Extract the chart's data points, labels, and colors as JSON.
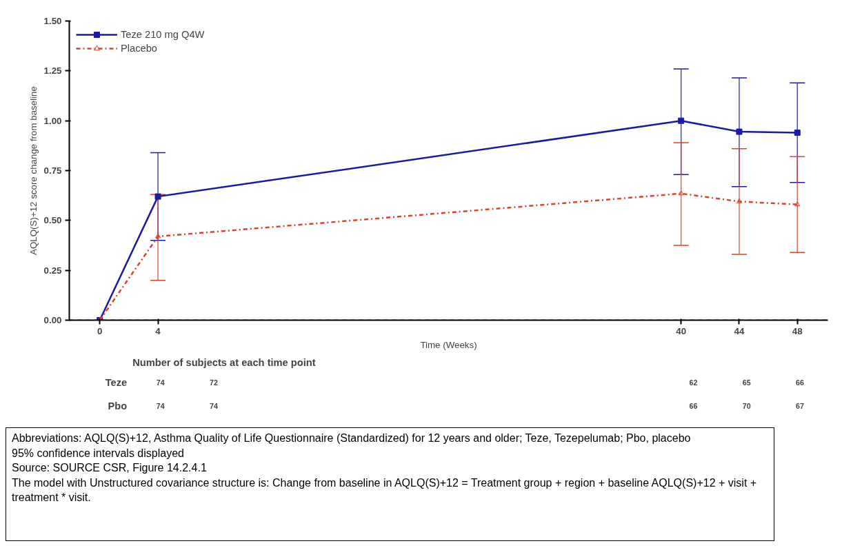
{
  "chart_data": {
    "type": "line",
    "x": [
      0,
      4,
      40,
      44,
      48
    ],
    "xlabel": "Time (Weeks)",
    "ylabel": "AQLQ(S)+12 score change from baseline",
    "xlim": [
      -2.1,
      50.1
    ],
    "xticks": [
      0,
      4,
      40,
      44,
      48
    ],
    "ylim": [
      0,
      1.5
    ],
    "yticks": [
      {
        "value": 0,
        "label": "0.00"
      },
      {
        "value": 0.25,
        "label": "0.25"
      },
      {
        "value": 0.5,
        "label": "0.50"
      },
      {
        "value": 0.75,
        "label": "0.75"
      },
      {
        "value": 1.0,
        "label": "1.00"
      },
      {
        "value": 1.25,
        "label": "1.25"
      },
      {
        "value": 1.5,
        "label": "1.50"
      }
    ],
    "grid": false,
    "legend": "top left",
    "series": [
      {
        "name": "Teze 210 mg Q4W",
        "color": "#1a1aa6",
        "marker": "square",
        "line_style": "solid",
        "values": [
          0,
          0.62,
          1.0,
          0.945,
          0.94
        ],
        "errors": [
          null,
          [
            0.4,
            0.84
          ],
          [
            0.73,
            1.26
          ],
          [
            0.67,
            1.215
          ],
          [
            0.69,
            1.19
          ]
        ]
      },
      {
        "name": "Placebo",
        "color": "#e0402a",
        "marker": "triangle",
        "line_style": "dashdot",
        "values": [
          0,
          0.42,
          0.635,
          0.595,
          0.58
        ],
        "errors": [
          null,
          [
            0.2,
            0.63
          ],
          [
            0.375,
            0.89
          ],
          [
            0.33,
            0.86
          ],
          [
            0.34,
            0.82
          ]
        ]
      }
    ],
    "ref_lines": [
      {
        "axis": "y",
        "value": 0,
        "color": "#000000",
        "line_style": "dashed"
      }
    ],
    "annotations": [
      "Number of subjects at each time point",
      "Teze",
      "74",
      "72",
      "62",
      "65",
      "66",
      "Pbo",
      "74",
      "74",
      "66",
      "70",
      "67",
      "Abbreviations: AQLQ(S)+12, Asthma Quality of Life Questionnaire (Standardized) for 12 years and older; Teze, Tezepelumab; Pbo, placebo",
      "95% confidence intervals displayed",
      "Source: SOURCE CSR, Figure 14.2.4.1",
      "The model with Unstructured covariance structure is: Change from baseline in AQLQ(S)+12 = Treatment group + region + baseline AQLQ(S)+12 + visit + treatment * visit."
    ]
  }
}
